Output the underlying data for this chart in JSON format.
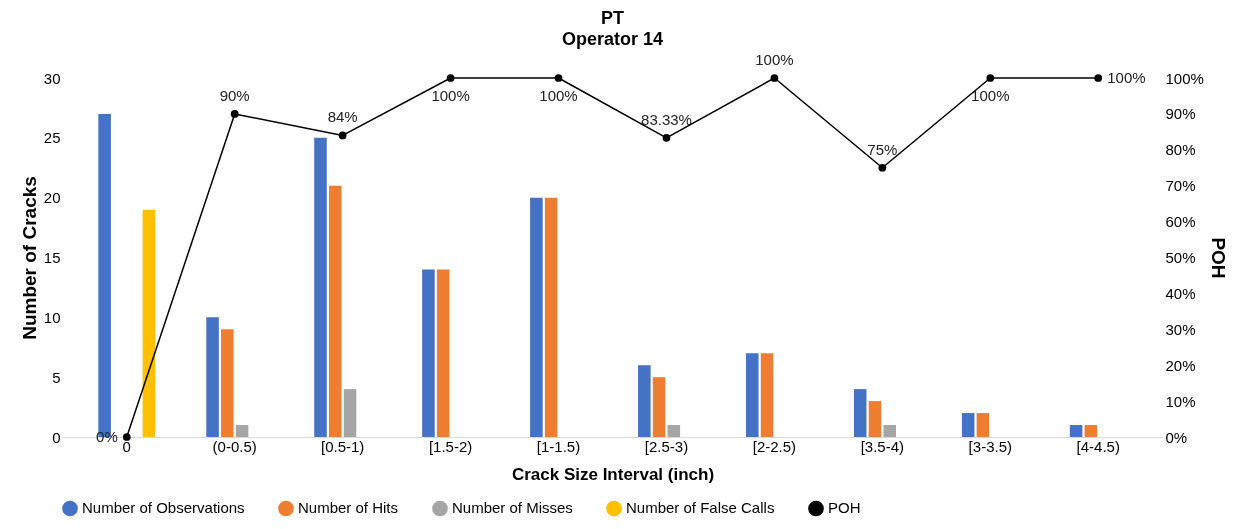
{
  "chart_data": {
    "type": "bar",
    "title": "PT",
    "subtitle": "Operator 14",
    "xlabel": "Crack Size Interval (inch)",
    "ylabel": "Number of Cracks",
    "y2label": "POH",
    "categories": [
      "0",
      "(0-0.5)",
      "[0.5-1)",
      "[1.5-2)",
      "[1-1.5)",
      "[2.5-3)",
      "[2-2.5)",
      "[3.5-4)",
      "[3-3.5)",
      "[4-4.5)"
    ],
    "series": [
      {
        "name": "Number of Observations",
        "color": "#4472c4",
        "values": [
          27,
          10,
          25,
          14,
          20,
          6,
          7,
          4,
          2,
          1
        ]
      },
      {
        "name": "Number of Hits",
        "color": "#ed7d31",
        "values": [
          null,
          9,
          21,
          14,
          20,
          5,
          7,
          3,
          2,
          1
        ]
      },
      {
        "name": "Number of Misses",
        "color": "#a5a5a5",
        "values": [
          null,
          1,
          4,
          null,
          null,
          1,
          null,
          1,
          null,
          null
        ]
      },
      {
        "name": "Number of False Calls",
        "color": "#ffc000",
        "values": [
          19,
          null,
          null,
          null,
          null,
          null,
          null,
          null,
          null,
          null
        ]
      },
      {
        "name": "POH",
        "type": "line",
        "axis": "y2",
        "color": "#000000",
        "values": [
          0,
          90,
          84,
          100,
          100,
          83.33,
          100,
          75,
          100,
          100
        ],
        "value_labels": [
          "0%",
          "90%",
          "84%",
          "100%",
          "100%",
          "83.33%",
          "100%",
          "75%",
          "100%",
          "100%"
        ]
      }
    ],
    "ylim": [
      0,
      30
    ],
    "yticks": [
      0,
      5,
      10,
      15,
      20,
      25,
      30
    ],
    "y2lim": [
      0,
      100
    ],
    "y2ticks": [
      {
        "value": 0,
        "label": "0%"
      },
      {
        "value": 10,
        "label": "10%"
      },
      {
        "value": 20,
        "label": "20%"
      },
      {
        "value": 30,
        "label": "30%"
      },
      {
        "value": 40,
        "label": "40%"
      },
      {
        "value": 50,
        "label": "50%"
      },
      {
        "value": 60,
        "label": "60%"
      },
      {
        "value": 70,
        "label": "70%"
      },
      {
        "value": 80,
        "label": "80%"
      },
      {
        "value": 90,
        "label": "90%"
      },
      {
        "value": 100,
        "label": "100%"
      }
    ],
    "legend": "bottom",
    "marker": "circle",
    "line_style": "solid"
  }
}
